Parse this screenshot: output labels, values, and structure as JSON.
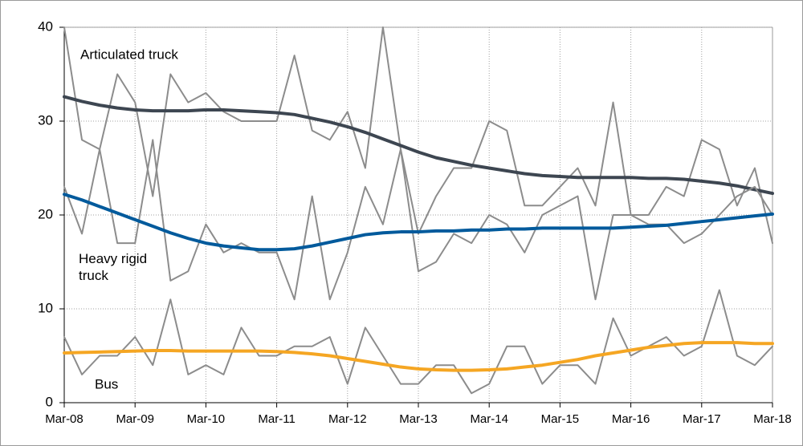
{
  "chart_data": {
    "type": "line",
    "categories": [
      "Mar-08",
      null,
      null,
      null,
      "Mar-09",
      null,
      null,
      null,
      "Mar-10",
      null,
      null,
      null,
      "Mar-11",
      null,
      null,
      null,
      "Mar-12",
      null,
      null,
      null,
      "Mar-13",
      null,
      null,
      null,
      "Mar-14",
      null,
      null,
      null,
      "Mar-15",
      null,
      null,
      null,
      "Mar-16",
      null,
      null,
      null,
      "Mar-17",
      null,
      null,
      null,
      "Mar-18"
    ],
    "ylim": [
      0,
      40
    ],
    "yticks": [
      0,
      10,
      20,
      30,
      40
    ],
    "grid": true,
    "series": [
      {
        "color": "#8c8c8c",
        "values": [
          40,
          28,
          27,
          35,
          32,
          22,
          35,
          32,
          33,
          31,
          30,
          30,
          30,
          37,
          29,
          28,
          31,
          25,
          40,
          27,
          18,
          22,
          25,
          25,
          30,
          29,
          21,
          21,
          23,
          25,
          21,
          32,
          20,
          20,
          23,
          22,
          28,
          27,
          21,
          25,
          17
        ]
      },
      {
        "name": "Articulated truck",
        "color": "#3d4651",
        "values": [
          32.6,
          32.1,
          31.7,
          31.4,
          31.2,
          31.1,
          31.1,
          31.1,
          31.2,
          31.2,
          31.1,
          31.0,
          30.9,
          30.7,
          30.3,
          29.9,
          29.4,
          28.8,
          28.1,
          27.4,
          26.7,
          26.1,
          25.7,
          25.3,
          25.0,
          24.7,
          24.4,
          24.2,
          24.1,
          24.0,
          24.0,
          24.0,
          24.0,
          23.9,
          23.9,
          23.8,
          23.6,
          23.4,
          23.1,
          22.7,
          22.3
        ]
      },
      {
        "color": "#8c8c8c",
        "values": [
          23,
          18,
          27,
          17,
          17,
          28,
          13,
          14,
          19,
          16,
          17,
          16,
          16,
          11,
          22,
          11,
          16,
          23,
          19,
          27,
          14,
          15,
          18,
          17,
          20,
          19,
          16,
          20,
          21,
          22,
          11,
          20,
          20,
          19,
          19,
          17,
          18,
          20,
          22,
          23,
          20
        ]
      },
      {
        "name": "Heavy rigid truck",
        "color": "#005a9c",
        "values": [
          22.2,
          21.6,
          20.9,
          20.2,
          19.5,
          18.8,
          18.1,
          17.5,
          17.0,
          16.7,
          16.5,
          16.3,
          16.3,
          16.4,
          16.7,
          17.1,
          17.5,
          17.9,
          18.1,
          18.2,
          18.2,
          18.3,
          18.3,
          18.4,
          18.4,
          18.5,
          18.5,
          18.6,
          18.6,
          18.6,
          18.6,
          18.6,
          18.7,
          18.8,
          18.9,
          19.1,
          19.3,
          19.5,
          19.7,
          19.9,
          20.1
        ]
      },
      {
        "color": "#8c8c8c",
        "values": [
          7,
          3,
          5,
          5,
          7,
          4,
          11,
          3,
          4,
          3,
          8,
          5,
          5,
          6,
          6,
          7,
          2,
          8,
          5,
          2,
          2,
          4,
          4,
          1,
          2,
          6,
          6,
          2,
          4,
          4,
          2,
          9,
          5,
          6,
          7,
          5,
          6,
          12,
          5,
          4,
          6
        ]
      },
      {
        "name": "Bus",
        "color": "#f5a623",
        "values": [
          5.3,
          5.35,
          5.4,
          5.45,
          5.5,
          5.55,
          5.55,
          5.5,
          5.5,
          5.5,
          5.5,
          5.5,
          5.45,
          5.35,
          5.2,
          5.0,
          4.7,
          4.4,
          4.1,
          3.8,
          3.6,
          3.5,
          3.45,
          3.45,
          3.5,
          3.6,
          3.8,
          4.0,
          4.3,
          4.6,
          5.0,
          5.3,
          5.6,
          5.9,
          6.1,
          6.3,
          6.4,
          6.4,
          6.4,
          6.3,
          6.3
        ]
      }
    ]
  }
}
